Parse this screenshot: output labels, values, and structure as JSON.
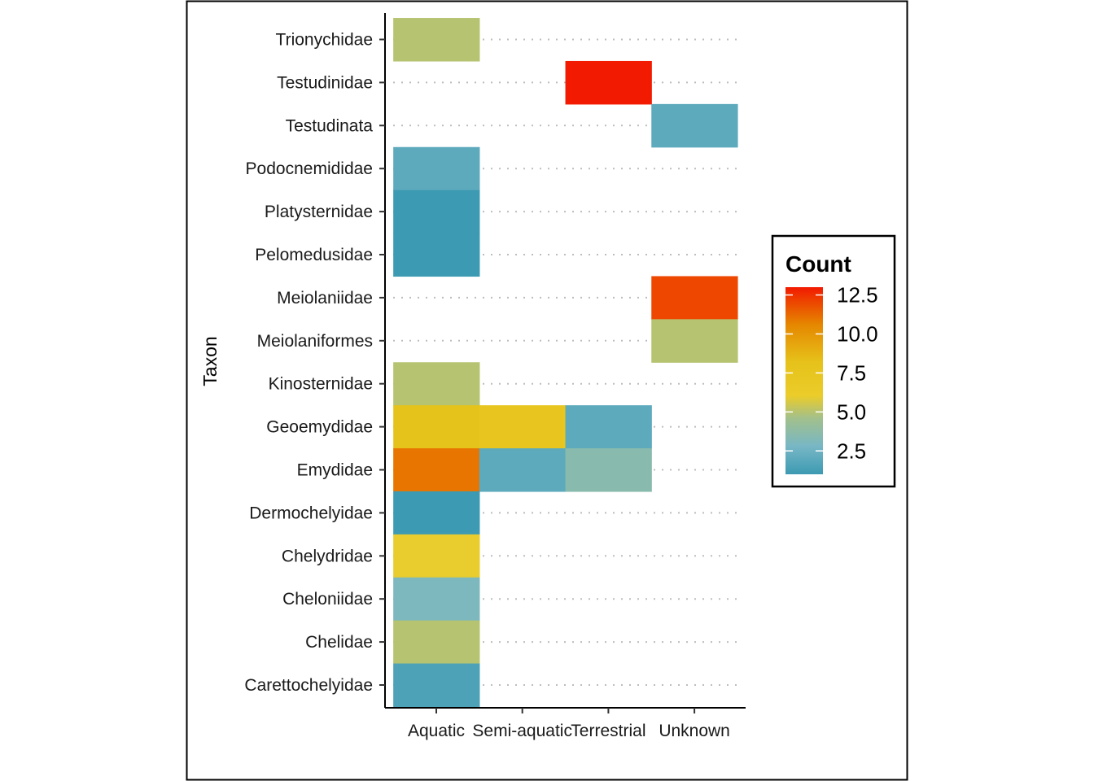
{
  "chart_data": {
    "type": "heatmap",
    "xlabel": "",
    "ylabel": "Taxon",
    "x_categories": [
      "Aquatic",
      "Semi-aquatic",
      "Terrestrial",
      "Unknown"
    ],
    "y_categories": [
      "Carettochelyidae",
      "Chelidae",
      "Cheloniidae",
      "Chelydridae",
      "Dermochelyidae",
      "Emydidae",
      "Geoemydidae",
      "Kinosternidae",
      "Meiolaniformes",
      "Meiolaniidae",
      "Pelomedusidae",
      "Platysternidae",
      "Podocnemididae",
      "Testudinata",
      "Testudinidae",
      "Trionychidae"
    ],
    "cells": [
      {
        "x": "Aquatic",
        "y": "Trionychidae",
        "value": 5
      },
      {
        "x": "Terrestrial",
        "y": "Testudinidae",
        "value": 13
      },
      {
        "x": "Unknown",
        "y": "Testudinata",
        "value": 2
      },
      {
        "x": "Aquatic",
        "y": "Podocnemididae",
        "value": 2
      },
      {
        "x": "Aquatic",
        "y": "Platysternidae",
        "value": 1
      },
      {
        "x": "Aquatic",
        "y": "Pelomedusidae",
        "value": 1
      },
      {
        "x": "Unknown",
        "y": "Meiolaniidae",
        "value": 12
      },
      {
        "x": "Unknown",
        "y": "Meiolaniformes",
        "value": 5
      },
      {
        "x": "Aquatic",
        "y": "Kinosternidae",
        "value": 5
      },
      {
        "x": "Aquatic",
        "y": "Geoemydidae",
        "value": 8
      },
      {
        "x": "Semi-aquatic",
        "y": "Geoemydidae",
        "value": 7.5
      },
      {
        "x": "Terrestrial",
        "y": "Geoemydidae",
        "value": 2
      },
      {
        "x": "Aquatic",
        "y": "Emydidae",
        "value": 11
      },
      {
        "x": "Semi-aquatic",
        "y": "Emydidae",
        "value": 2
      },
      {
        "x": "Terrestrial",
        "y": "Emydidae",
        "value": 3.5
      },
      {
        "x": "Aquatic",
        "y": "Dermochelyidae",
        "value": 1
      },
      {
        "x": "Aquatic",
        "y": "Chelydridae",
        "value": 6
      },
      {
        "x": "Aquatic",
        "y": "Cheloniidae",
        "value": 3
      },
      {
        "x": "Aquatic",
        "y": "Chelidae",
        "value": 5
      },
      {
        "x": "Aquatic",
        "y": "Carettochelyidae",
        "value": 1.5
      }
    ],
    "legend": {
      "title": "Count",
      "placement": "right",
      "ticks": [
        12.5,
        10.0,
        7.5,
        5.0,
        2.5
      ],
      "tick_labels": [
        "12.5",
        "10.0",
        "7.5",
        "5.0",
        "2.5"
      ],
      "range": [
        1,
        13
      ]
    },
    "color_scale": [
      {
        "stop": 0.0,
        "color": "#3c9ab2"
      },
      {
        "stop": 0.15,
        "color": "#78b7c5"
      },
      {
        "stop": 0.3,
        "color": "#a2c08b"
      },
      {
        "stop": 0.42,
        "color": "#ebcc2a"
      },
      {
        "stop": 0.6,
        "color": "#e6c21a"
      },
      {
        "stop": 0.8,
        "color": "#e58700"
      },
      {
        "stop": 1.0,
        "color": "#f21a00"
      }
    ],
    "grid": "dotted-horizontal"
  }
}
